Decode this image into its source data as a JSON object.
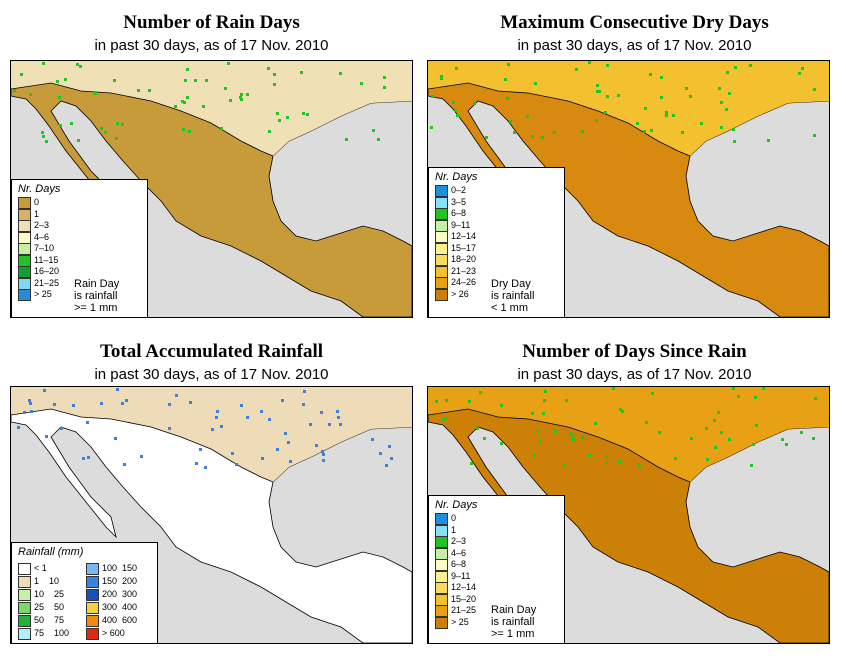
{
  "panels": [
    {
      "title": "Number of Rain Days",
      "subtitle": "in past 30 days, as of  17 Nov. 2010",
      "legend_title": "Nr. Days",
      "note": [
        "Rain Day",
        "is rainfall",
        ">= 1 mm"
      ],
      "scale": [
        {
          "label": "0",
          "color": "#c89b3a"
        },
        {
          "label": "1",
          "color": "#d8b06a"
        },
        {
          "label": "2–3",
          "color": "#efe0b6"
        },
        {
          "label": "4–6",
          "color": "#fbfcc8"
        },
        {
          "label": "7–10",
          "color": "#c8f0a0"
        },
        {
          "label": "11–15",
          "color": "#22c422"
        },
        {
          "label": "16–20",
          "color": "#12a032"
        },
        {
          "label": "21–25",
          "color": "#7fd8f5"
        },
        {
          "label": "> 25",
          "color": "#2a88d8"
        }
      ]
    },
    {
      "title": "Maximum Consecutive Dry Days",
      "subtitle": "in past 30 days, as of  17 Nov. 2010",
      "legend_title": "Nr. Days",
      "note": [
        "Dry Day",
        "is rainfall",
        "< 1 mm"
      ],
      "scale": [
        {
          "label": "0–2",
          "color": "#1e90e0"
        },
        {
          "label": "3–5",
          "color": "#86e0f8"
        },
        {
          "label": "6–8",
          "color": "#22c422"
        },
        {
          "label": "9–11",
          "color": "#c6f0a8"
        },
        {
          "label": "12–14",
          "color": "#fbfbc4"
        },
        {
          "label": "15–17",
          "color": "#fbf08a"
        },
        {
          "label": "18–20",
          "color": "#f8dc5a"
        },
        {
          "label": "21–23",
          "color": "#f3c030"
        },
        {
          "label": "24–26",
          "color": "#e8a014"
        },
        {
          "label": "> 26",
          "color": "#cc8008"
        }
      ]
    },
    {
      "title": "Total Accumulated Rainfall",
      "subtitle": "in past 30 days, as of  17 Nov. 2010",
      "legend_title": "Rainfall (mm)",
      "scale": [
        {
          "label": "< 1",
          "color": "#ffffff"
        },
        {
          "label": "1    10",
          "color": "#eedcb8"
        },
        {
          "label": "10    25",
          "color": "#c6f0a8"
        },
        {
          "label": "25    50",
          "color": "#7ad86a"
        },
        {
          "label": "50    75",
          "color": "#22b43a"
        },
        {
          "label": "75    100",
          "color": "#b4eef8"
        },
        {
          "label": "100  150",
          "color": "#7ab8f0"
        },
        {
          "label": "150  200",
          "color": "#3c80e0"
        },
        {
          "label": "200  300",
          "color": "#1850b8"
        },
        {
          "label": "300  400",
          "color": "#f6d040"
        },
        {
          "label": "400  600",
          "color": "#f08a10"
        },
        {
          "label": "> 600",
          "color": "#e02a10"
        }
      ]
    },
    {
      "title": "Number of Days Since Rain",
      "subtitle": "in past 30 days, as of  17 Nov. 2010",
      "legend_title": "Nr. Days",
      "note": [
        "Rain Day",
        "is rainfall",
        ">= 1 mm"
      ],
      "scale": [
        {
          "label": "0",
          "color": "#1e90e0"
        },
        {
          "label": "1",
          "color": "#86e0f8"
        },
        {
          "label": "2–3",
          "color": "#22c422"
        },
        {
          "label": "4–6",
          "color": "#c6f0a8"
        },
        {
          "label": "6–8",
          "color": "#fbfbc4"
        },
        {
          "label": "9–11",
          "color": "#fbf08a"
        },
        {
          "label": "12–14",
          "color": "#f8dc5a"
        },
        {
          "label": "15–20",
          "color": "#f3c030"
        },
        {
          "label": "21–25",
          "color": "#e8a014"
        },
        {
          "label": "> 25",
          "color": "#cc8008"
        }
      ]
    }
  ]
}
